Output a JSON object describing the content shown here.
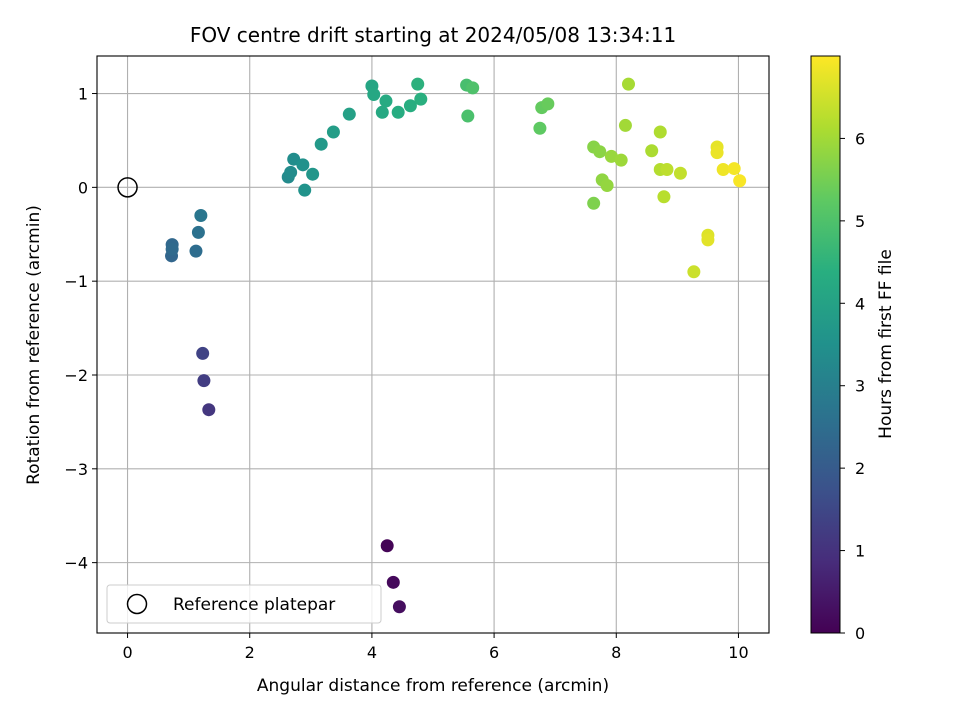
{
  "chart_data": {
    "type": "scatter",
    "title": "FOV centre drift starting at 2024/05/08 13:34:11",
    "xlabel": "Angular distance from reference (arcmin)",
    "ylabel": "Rotation from reference (arcmin)",
    "xlim": [
      -0.5,
      10.5
    ],
    "ylim": [
      -4.75,
      1.4
    ],
    "xticks": [
      0,
      2,
      4,
      6,
      8,
      10
    ],
    "yticks": [
      -4,
      -3,
      -2,
      -1,
      0,
      1
    ],
    "grid": true,
    "colormap": "viridis",
    "colorbar": {
      "label": "Hours from first FF file",
      "range": [
        0,
        7
      ],
      "ticks": [
        0,
        1,
        2,
        3,
        4,
        5,
        6
      ]
    },
    "legend": {
      "location": "lower-left",
      "entries": [
        {
          "label": "Reference platepar",
          "marker": "open-circle"
        }
      ]
    },
    "reference_point": {
      "x": 0,
      "y": 0
    },
    "points": [
      {
        "x": 4.25,
        "y": -3.82,
        "hours": 0.05
      },
      {
        "x": 4.35,
        "y": -4.21,
        "hours": 0.15
      },
      {
        "x": 4.45,
        "y": -4.47,
        "hours": 0.25
      },
      {
        "x": 1.33,
        "y": -2.37,
        "hours": 1.1
      },
      {
        "x": 1.25,
        "y": -2.06,
        "hours": 1.25
      },
      {
        "x": 1.23,
        "y": -1.77,
        "hours": 1.4
      },
      {
        "x": 0.72,
        "y": -0.73,
        "hours": 2.3
      },
      {
        "x": 0.73,
        "y": -0.61,
        "hours": 2.35
      },
      {
        "x": 0.73,
        "y": -0.66,
        "hours": 2.4
      },
      {
        "x": 1.12,
        "y": -0.68,
        "hours": 2.5
      },
      {
        "x": 1.16,
        "y": -0.48,
        "hours": 2.6
      },
      {
        "x": 1.2,
        "y": -0.3,
        "hours": 2.75
      },
      {
        "x": 2.63,
        "y": 0.11,
        "hours": 3.3
      },
      {
        "x": 2.67,
        "y": 0.16,
        "hours": 3.35
      },
      {
        "x": 2.72,
        "y": 0.3,
        "hours": 3.4
      },
      {
        "x": 2.87,
        "y": 0.24,
        "hours": 3.5
      },
      {
        "x": 2.9,
        "y": -0.03,
        "hours": 3.55
      },
      {
        "x": 3.03,
        "y": 0.14,
        "hours": 3.65
      },
      {
        "x": 3.17,
        "y": 0.46,
        "hours": 3.75
      },
      {
        "x": 3.37,
        "y": 0.59,
        "hours": 3.85
      },
      {
        "x": 3.63,
        "y": 0.78,
        "hours": 3.95
      },
      {
        "x": 4.0,
        "y": 1.08,
        "hours": 4.1
      },
      {
        "x": 4.03,
        "y": 0.99,
        "hours": 4.15
      },
      {
        "x": 4.17,
        "y": 0.8,
        "hours": 4.2
      },
      {
        "x": 4.23,
        "y": 0.92,
        "hours": 4.25
      },
      {
        "x": 4.43,
        "y": 0.8,
        "hours": 4.3
      },
      {
        "x": 4.63,
        "y": 0.87,
        "hours": 4.35
      },
      {
        "x": 4.75,
        "y": 1.1,
        "hours": 4.45
      },
      {
        "x": 4.8,
        "y": 0.94,
        "hours": 4.4
      },
      {
        "x": 5.55,
        "y": 1.09,
        "hours": 4.9
      },
      {
        "x": 5.57,
        "y": 0.76,
        "hours": 4.95
      },
      {
        "x": 5.65,
        "y": 1.06,
        "hours": 5.0
      },
      {
        "x": 6.75,
        "y": 0.63,
        "hours": 5.25
      },
      {
        "x": 6.78,
        "y": 0.85,
        "hours": 5.3
      },
      {
        "x": 6.88,
        "y": 0.89,
        "hours": 5.35
      },
      {
        "x": 7.63,
        "y": 0.43,
        "hours": 5.7
      },
      {
        "x": 7.63,
        "y": -0.17,
        "hours": 5.6
      },
      {
        "x": 7.73,
        "y": 0.38,
        "hours": 5.75
      },
      {
        "x": 7.77,
        "y": 0.08,
        "hours": 5.8
      },
      {
        "x": 7.85,
        "y": 0.02,
        "hours": 5.85
      },
      {
        "x": 7.92,
        "y": 0.33,
        "hours": 5.9
      },
      {
        "x": 8.08,
        "y": 0.29,
        "hours": 5.95
      },
      {
        "x": 8.15,
        "y": 0.66,
        "hours": 6.0
      },
      {
        "x": 8.2,
        "y": 1.1,
        "hours": 6.05
      },
      {
        "x": 8.58,
        "y": 0.39,
        "hours": 6.1
      },
      {
        "x": 8.72,
        "y": 0.59,
        "hours": 6.15
      },
      {
        "x": 8.72,
        "y": 0.19,
        "hours": 6.2
      },
      {
        "x": 8.78,
        "y": -0.1,
        "hours": 6.25
      },
      {
        "x": 8.83,
        "y": 0.19,
        "hours": 6.3
      },
      {
        "x": 9.05,
        "y": 0.15,
        "hours": 6.35
      },
      {
        "x": 9.27,
        "y": -0.9,
        "hours": 6.45
      },
      {
        "x": 9.5,
        "y": -0.51,
        "hours": 6.65
      },
      {
        "x": 9.5,
        "y": -0.56,
        "hours": 6.7
      },
      {
        "x": 9.65,
        "y": 0.43,
        "hours": 6.75
      },
      {
        "x": 9.65,
        "y": 0.37,
        "hours": 6.8
      },
      {
        "x": 9.75,
        "y": 0.19,
        "hours": 6.85
      },
      {
        "x": 9.93,
        "y": 0.2,
        "hours": 6.9
      },
      {
        "x": 10.02,
        "y": 0.07,
        "hours": 6.95
      }
    ]
  }
}
